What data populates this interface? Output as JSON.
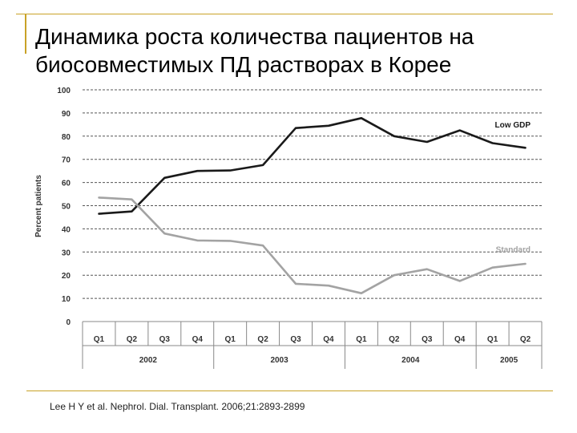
{
  "slide": {
    "title_line1": "Динамика роста количества пациентов на",
    "title_line2": "биосовместимых ПД растворах в Корее",
    "citation": "Lee H Y et al. Nephrol. Dial. Transplant. 2006;21:2893-2899"
  },
  "chart_data": {
    "type": "line",
    "ylabel": "Percent patients",
    "ylim": [
      0,
      100
    ],
    "yticks": [
      0,
      10,
      20,
      30,
      40,
      50,
      60,
      70,
      80,
      90,
      100
    ],
    "categories": [
      "Q1",
      "Q2",
      "Q3",
      "Q4",
      "Q1",
      "Q2",
      "Q3",
      "Q4",
      "Q1",
      "Q2",
      "Q3",
      "Q4",
      "Q1",
      "Q2"
    ],
    "years": [
      {
        "label": "2002",
        "span": 4
      },
      {
        "label": "2003",
        "span": 4
      },
      {
        "label": "2004",
        "span": 4
      },
      {
        "label": "2005",
        "span": 2
      }
    ],
    "series": [
      {
        "name": "Low GDP",
        "color": "#1a1a1a",
        "values": [
          46.5,
          47.5,
          62,
          65,
          65.2,
          67.5,
          83.5,
          84.5,
          87.8,
          80,
          77.5,
          82.5,
          77,
          75
        ]
      },
      {
        "name": "Standard",
        "color": "#a3a3a3",
        "values": [
          53.5,
          52.7,
          38,
          35,
          34.8,
          32.8,
          16.3,
          15.5,
          12.2,
          20,
          22.6,
          17.5,
          23.3,
          24.9
        ]
      }
    ]
  }
}
